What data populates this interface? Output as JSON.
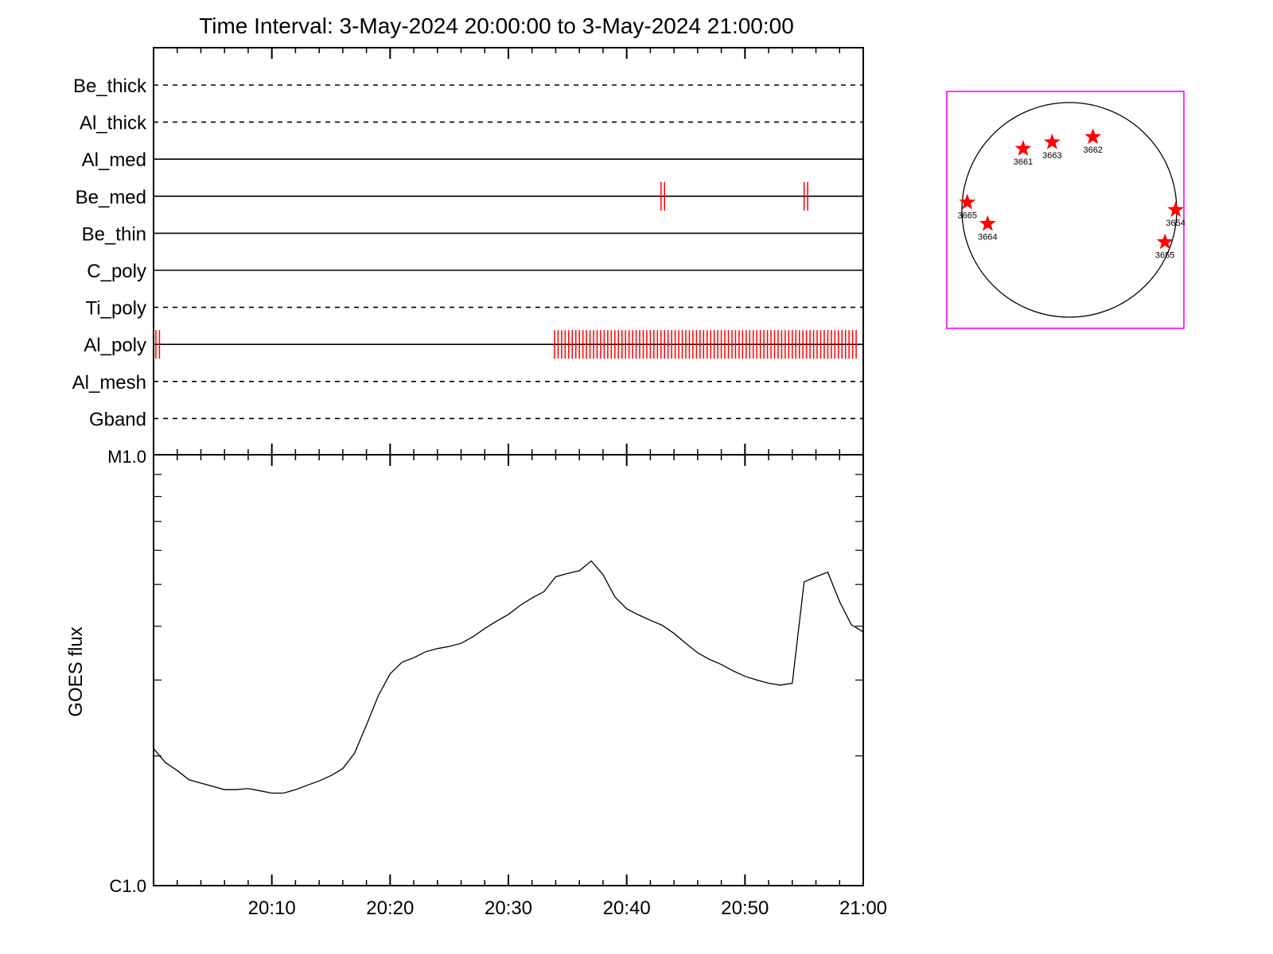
{
  "title": "Time Interval:  3-May-2024 20:00:00 to  3-May-2024 21:00:00",
  "colors": {
    "axes": "#000000",
    "marks": "#ff0000",
    "box": "#ff00ff"
  },
  "chart_data": [
    {
      "type": "timeline",
      "x": {
        "start": "20:00",
        "end": "21:00",
        "unit": "minutes"
      },
      "rows": [
        {
          "name": "Be_thick",
          "style": "dashed",
          "events": []
        },
        {
          "name": "Al_thick",
          "style": "dashed",
          "events": []
        },
        {
          "name": "Al_med",
          "style": "solid",
          "events": []
        },
        {
          "name": "Be_med",
          "style": "solid",
          "events": [
            42.9,
            43.2,
            55.0,
            55.3
          ]
        },
        {
          "name": "Be_thin",
          "style": "solid",
          "events": []
        },
        {
          "name": "C_poly",
          "style": "solid",
          "events": []
        },
        {
          "name": "Ti_poly",
          "style": "dashed",
          "events": []
        },
        {
          "name": "Al_poly",
          "style": "solid",
          "events": [
            0.2,
            0.5,
            "33.9 to 59.6 every 0.3"
          ]
        },
        {
          "name": "Al_mesh",
          "style": "dashed",
          "events": []
        },
        {
          "name": "Gband",
          "style": "dashed",
          "events": []
        }
      ]
    },
    {
      "type": "line",
      "ylabel": "GOES flux",
      "yscale": "log",
      "yticks": [
        "C1.0",
        "M1.0"
      ],
      "ylim": [
        1e-06,
        1e-05
      ],
      "xlim": [
        "20:00",
        "21:00"
      ],
      "xticks": [
        "20:10",
        "20:20",
        "20:30",
        "20:40",
        "20:50",
        "21:00"
      ],
      "series": [
        {
          "x": [
            0,
            1,
            2,
            3,
            4,
            5,
            6,
            7,
            8,
            9,
            10,
            11,
            12,
            13,
            14,
            15,
            16,
            17,
            18,
            19,
            20,
            21,
            22,
            23,
            24,
            25,
            26,
            27,
            28,
            29,
            30,
            31,
            32,
            33,
            34,
            35,
            36,
            37,
            38,
            39,
            40,
            41,
            42,
            43,
            44,
            45,
            46,
            47,
            48,
            49,
            50,
            51,
            52,
            53,
            54,
            55,
            56,
            57,
            58,
            59,
            60
          ],
          "values": [
            2.08e-06,
            1.93e-06,
            1.85e-06,
            1.76e-06,
            1.73e-06,
            1.7e-06,
            1.67e-06,
            1.67e-06,
            1.68e-06,
            1.66e-06,
            1.64e-06,
            1.64e-06,
            1.67e-06,
            1.71e-06,
            1.75e-06,
            1.8e-06,
            1.87e-06,
            2.03e-06,
            2.36e-06,
            2.76e-06,
            3.1e-06,
            3.3e-06,
            3.38e-06,
            3.49e-06,
            3.55e-06,
            3.59e-06,
            3.65e-06,
            3.78e-06,
            3.95e-06,
            4.11e-06,
            4.26e-06,
            4.47e-06,
            4.65e-06,
            4.81e-06,
            5.21e-06,
            5.3e-06,
            5.38e-06,
            5.67e-06,
            5.27e-06,
            4.68e-06,
            4.39e-06,
            4.25e-06,
            4.13e-06,
            4.02e-06,
            3.85e-06,
            3.65e-06,
            3.47e-06,
            3.35e-06,
            3.26e-06,
            3.15e-06,
            3.06e-06,
            3e-06,
            2.95e-06,
            2.92e-06,
            2.95e-06,
            5.07e-06,
            5.21e-06,
            5.34e-06,
            4.56e-06,
            4.03e-06,
            3.88e-06
          ]
        }
      ]
    },
    {
      "type": "scatter",
      "title": "",
      "points": [
        {
          "label": "3661",
          "x": -0.43,
          "y": 0.57
        },
        {
          "label": "3663",
          "x": -0.16,
          "y": 0.63
        },
        {
          "label": "3662",
          "x": 0.22,
          "y": 0.68
        },
        {
          "label": "3665",
          "x": -0.95,
          "y": 0.07
        },
        {
          "label": "3664",
          "x": -0.76,
          "y": -0.13
        },
        {
          "label": "3654",
          "x": 0.99,
          "y": 0.0
        },
        {
          "label": "3655",
          "x": 0.89,
          "y": -0.3
        }
      ]
    }
  ]
}
